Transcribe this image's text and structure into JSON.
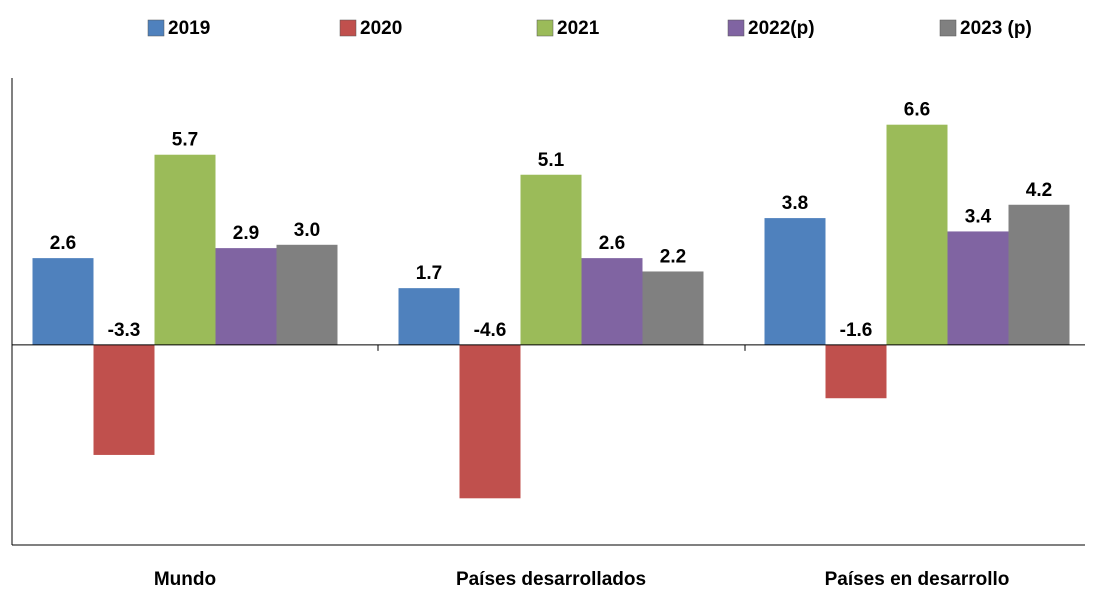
{
  "chart_data": {
    "type": "bar",
    "categories": [
      "Mundo",
      "Países desarrollados",
      "Países en desarrollo"
    ],
    "series": [
      {
        "name": "2019",
        "color": "#4f81bd",
        "values": [
          2.6,
          1.7,
          3.8
        ],
        "value_labels": [
          "2.6",
          "1.7",
          "3.8"
        ]
      },
      {
        "name": "2020",
        "color": "#c0504d",
        "values": [
          -3.3,
          -4.6,
          -1.6
        ],
        "value_labels": [
          "-3.3",
          "-4.6",
          "-1.6"
        ]
      },
      {
        "name": "2021",
        "color": "#9bbb59",
        "values": [
          5.7,
          5.1,
          6.6
        ],
        "value_labels": [
          "5.7",
          "5.1",
          "6.6"
        ]
      },
      {
        "name": "2022(p)",
        "color": "#8064a2",
        "values": [
          2.9,
          2.6,
          3.4
        ],
        "value_labels": [
          "2.9",
          "2.6",
          "3.4"
        ]
      },
      {
        "name": "2023 (p)",
        "color": "#808080",
        "values": [
          3.0,
          2.2,
          4.2
        ],
        "value_labels": [
          "3.0",
          "2.2",
          "4.2"
        ]
      }
    ],
    "ylim": [
      -6,
      8
    ]
  }
}
